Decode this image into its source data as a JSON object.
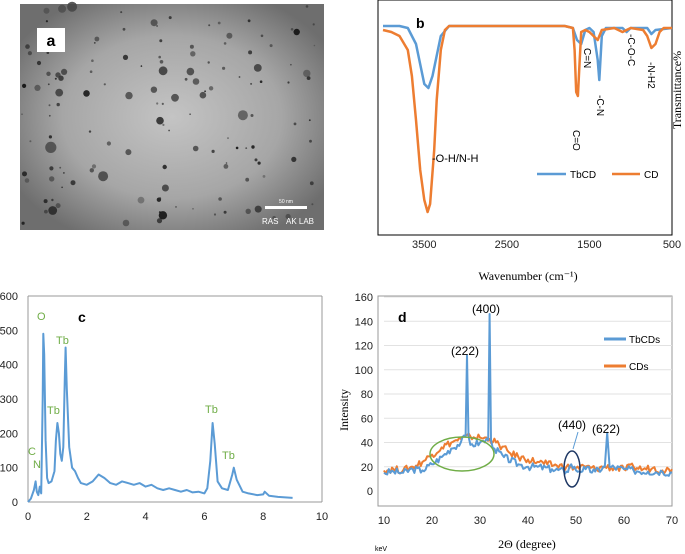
{
  "colors": {
    "blue": "#5b9bd5",
    "orange": "#ed7d31",
    "green_label": "#70ad47",
    "green_circle": "#70ad47",
    "dark_circle": "#1f3864"
  },
  "panel_a": {
    "label": "a",
    "scale_bar": "50 nm",
    "lab_text": "RAS",
    "lab_text2": "AK LAB"
  },
  "chart_data": [
    {
      "type": "line",
      "panel_label": "b",
      "xlabel": "Wavenumber (cm⁻¹)",
      "ylabel": "Transmittance%",
      "x_ticks": [
        3500,
        2500,
        1500,
        500
      ],
      "xlim": [
        4000,
        500
      ],
      "x_reversed": true,
      "legend": [
        "TbCD",
        "CD"
      ],
      "legend_position": "bottom-right",
      "annotations": [
        "-O-H/N-H",
        "C=O",
        "C=N",
        "-C-N",
        "-C-O-C",
        "-N-H2"
      ],
      "series": [
        {
          "name": "TbCD",
          "points": [
            [
              4000,
              97
            ],
            [
              3800,
              97
            ],
            [
              3700,
              96
            ],
            [
              3600,
              88
            ],
            [
              3500,
              68
            ],
            [
              3450,
              66
            ],
            [
              3400,
              72
            ],
            [
              3300,
              92
            ],
            [
              3200,
              97
            ],
            [
              2000,
              97
            ],
            [
              1800,
              97
            ],
            [
              1700,
              96
            ],
            [
              1650,
              90
            ],
            [
              1600,
              88
            ],
            [
              1550,
              95
            ],
            [
              1500,
              96
            ],
            [
              1450,
              94
            ],
            [
              1400,
              80
            ],
            [
              1380,
              70
            ],
            [
              1350,
              92
            ],
            [
              1300,
              96
            ],
            [
              1100,
              96
            ],
            [
              1050,
              94
            ],
            [
              1000,
              96
            ],
            [
              800,
              96
            ],
            [
              750,
              93
            ],
            [
              700,
              95
            ],
            [
              500,
              96
            ]
          ]
        },
        {
          "name": "CD",
          "points": [
            [
              4000,
              95
            ],
            [
              3900,
              94
            ],
            [
              3800,
              92
            ],
            [
              3700,
              85
            ],
            [
              3650,
              72
            ],
            [
              3600,
              50
            ],
            [
              3550,
              25
            ],
            [
              3500,
              10
            ],
            [
              3460,
              4
            ],
            [
              3430,
              8
            ],
            [
              3380,
              35
            ],
            [
              3350,
              60
            ],
            [
              3300,
              85
            ],
            [
              3250,
              95
            ],
            [
              3200,
              97
            ],
            [
              2000,
              97
            ],
            [
              1800,
              97
            ],
            [
              1700,
              96
            ],
            [
              1680,
              85
            ],
            [
              1660,
              64
            ],
            [
              1640,
              62
            ],
            [
              1620,
              78
            ],
            [
              1600,
              94
            ],
            [
              1550,
              95
            ],
            [
              1500,
              94
            ],
            [
              1400,
              90
            ],
            [
              1350,
              95
            ],
            [
              1200,
              96
            ],
            [
              1100,
              94
            ],
            [
              1000,
              96
            ],
            [
              850,
              95
            ],
            [
              800,
              92
            ],
            [
              750,
              86
            ],
            [
              700,
              88
            ],
            [
              650,
              94
            ],
            [
              600,
              96
            ],
            [
              500,
              96
            ]
          ]
        }
      ]
    },
    {
      "type": "line",
      "panel_label": "c",
      "xlabel": "keV",
      "ylabel": "",
      "x_ticks": [
        0,
        2,
        4,
        6,
        8,
        10
      ],
      "y_ticks": [
        0,
        100,
        200,
        300,
        400,
        500,
        600
      ],
      "xlim": [
        0,
        10
      ],
      "ylim": [
        0,
        600
      ],
      "element_labels": [
        "C",
        "N",
        "O",
        "Tb",
        "Tb",
        "Tb",
        "Tb"
      ],
      "series": [
        {
          "name": "EDS",
          "points": [
            [
              0.0,
              0
            ],
            [
              0.1,
              10
            ],
            [
              0.2,
              35
            ],
            [
              0.26,
              60
            ],
            [
              0.3,
              30
            ],
            [
              0.35,
              20
            ],
            [
              0.4,
              45
            ],
            [
              0.45,
              25
            ],
            [
              0.5,
              300
            ],
            [
              0.52,
              490
            ],
            [
              0.55,
              430
            ],
            [
              0.6,
              180
            ],
            [
              0.65,
              70
            ],
            [
              0.7,
              55
            ],
            [
              0.8,
              60
            ],
            [
              0.9,
              90
            ],
            [
              0.95,
              180
            ],
            [
              1.0,
              230
            ],
            [
              1.05,
              200
            ],
            [
              1.1,
              140
            ],
            [
              1.15,
              120
            ],
            [
              1.2,
              160
            ],
            [
              1.25,
              360
            ],
            [
              1.28,
              450
            ],
            [
              1.32,
              330
            ],
            [
              1.4,
              160
            ],
            [
              1.5,
              100
            ],
            [
              1.6,
              90
            ],
            [
              1.7,
              70
            ],
            [
              1.8,
              55
            ],
            [
              2.0,
              50
            ],
            [
              2.2,
              60
            ],
            [
              2.4,
              80
            ],
            [
              2.6,
              70
            ],
            [
              2.8,
              55
            ],
            [
              3.0,
              50
            ],
            [
              3.2,
              60
            ],
            [
              3.4,
              55
            ],
            [
              3.6,
              50
            ],
            [
              3.8,
              55
            ],
            [
              4.0,
              45
            ],
            [
              4.2,
              50
            ],
            [
              4.4,
              40
            ],
            [
              4.6,
              35
            ],
            [
              4.8,
              40
            ],
            [
              5.0,
              35
            ],
            [
              5.2,
              30
            ],
            [
              5.4,
              35
            ],
            [
              5.6,
              28
            ],
            [
              5.8,
              30
            ],
            [
              6.0,
              25
            ],
            [
              6.1,
              40
            ],
            [
              6.2,
              120
            ],
            [
              6.28,
              230
            ],
            [
              6.35,
              170
            ],
            [
              6.45,
              60
            ],
            [
              6.6,
              40
            ],
            [
              6.8,
              35
            ],
            [
              6.95,
              80
            ],
            [
              7.0,
              100
            ],
            [
              7.1,
              65
            ],
            [
              7.3,
              30
            ],
            [
              7.5,
              25
            ],
            [
              7.8,
              20
            ],
            [
              8.0,
              22
            ],
            [
              8.05,
              30
            ],
            [
              8.2,
              18
            ],
            [
              8.5,
              15
            ],
            [
              9.0,
              12
            ]
          ]
        }
      ]
    },
    {
      "type": "line",
      "panel_label": "d",
      "xlabel": "2Θ (degree)",
      "ylabel": "Intensity",
      "x_ticks": [
        10,
        20,
        30,
        40,
        50,
        60,
        70
      ],
      "y_ticks": [
        0,
        20,
        40,
        60,
        80,
        100,
        120,
        140,
        160
      ],
      "xlim": [
        10,
        70
      ],
      "ylim": [
        0,
        160
      ],
      "legend": [
        "TbCDs",
        "CDs"
      ],
      "legend_position": "top-right",
      "peak_labels": [
        "(400)",
        "(222)",
        "(440)",
        "(622)"
      ],
      "series": [
        {
          "name": "TbCDs",
          "points": [
            [
              10,
              15
            ],
            [
              12,
              16
            ],
            [
              14,
              15
            ],
            [
              16,
              18
            ],
            [
              18,
              17
            ],
            [
              20,
              22
            ],
            [
              22,
              28
            ],
            [
              24,
              35
            ],
            [
              26,
              40
            ],
            [
              27,
              45
            ],
            [
              27.3,
              112
            ],
            [
              27.6,
              45
            ],
            [
              28,
              38
            ],
            [
              30,
              40
            ],
            [
              31.7,
              42
            ],
            [
              32,
              146
            ],
            [
              32.3,
              42
            ],
            [
              33,
              35
            ],
            [
              35,
              28
            ],
            [
              38,
              22
            ],
            [
              40,
              20
            ],
            [
              42,
              20
            ],
            [
              45,
              18
            ],
            [
              48,
              16
            ],
            [
              49,
              22
            ],
            [
              50,
              17
            ],
            [
              52,
              18
            ],
            [
              54,
              16
            ],
            [
              56,
              20
            ],
            [
              56.5,
              48
            ],
            [
              57,
              20
            ],
            [
              60,
              18
            ],
            [
              62,
              17
            ],
            [
              65,
              16
            ],
            [
              68,
              16
            ],
            [
              70,
              15
            ]
          ]
        },
        {
          "name": "CDs",
          "points": [
            [
              10,
              17
            ],
            [
              12,
              18
            ],
            [
              14,
              17
            ],
            [
              16,
              20
            ],
            [
              18,
              24
            ],
            [
              20,
              30
            ],
            [
              22,
              36
            ],
            [
              24,
              40
            ],
            [
              26,
              43
            ],
            [
              28,
              45
            ],
            [
              30,
              44
            ],
            [
              32,
              43
            ],
            [
              34,
              38
            ],
            [
              36,
              32
            ],
            [
              38,
              28
            ],
            [
              40,
              26
            ],
            [
              42,
              24
            ],
            [
              44,
              22
            ],
            [
              46,
              21
            ],
            [
              48,
              20
            ],
            [
              50,
              19
            ],
            [
              52,
              20
            ],
            [
              54,
              18
            ],
            [
              56,
              20
            ],
            [
              58,
              19
            ],
            [
              60,
              18
            ],
            [
              62,
              20
            ],
            [
              64,
              18
            ],
            [
              66,
              19
            ],
            [
              68,
              17
            ],
            [
              70,
              18
            ]
          ]
        }
      ]
    }
  ]
}
